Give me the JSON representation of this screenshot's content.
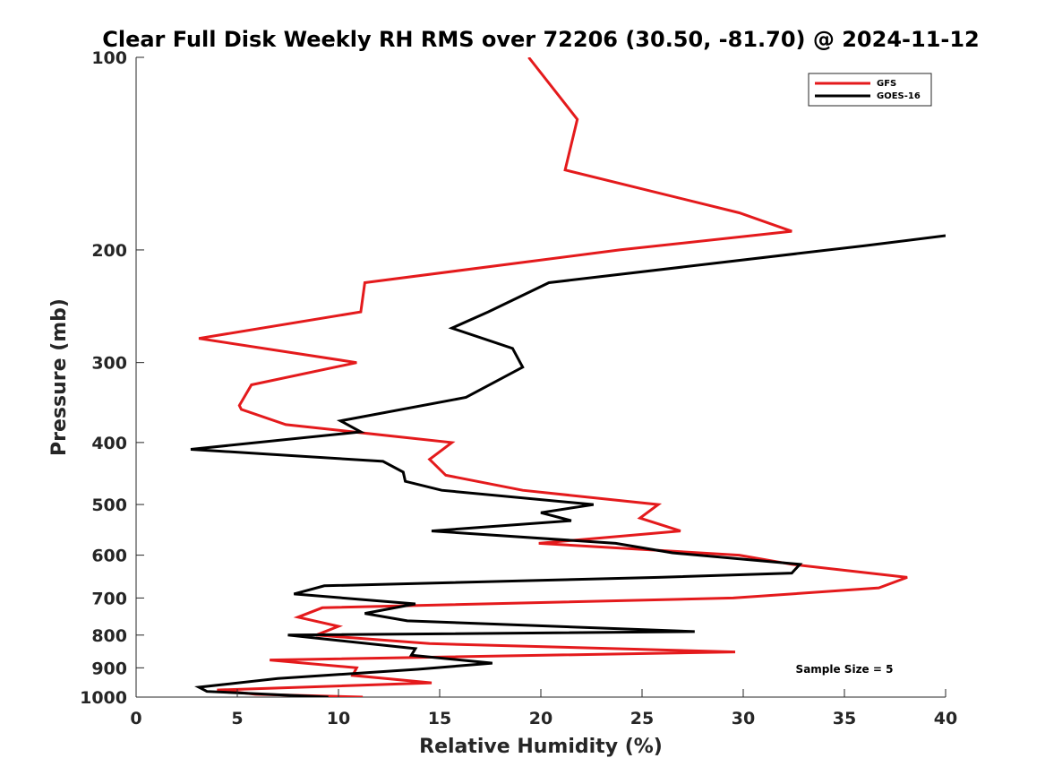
{
  "chart_data": {
    "type": "line",
    "title": "Clear Full Disk Weekly RH RMS over 72206 (30.50, -81.70) @ 2024-11-12",
    "xlabel": "Relative Humidity (%)",
    "ylabel": "Pressure (mb)",
    "xlim": [
      0,
      40
    ],
    "ylim": [
      100,
      1000
    ],
    "yscale": "log",
    "yreversed": true,
    "xticks": [
      0,
      5,
      10,
      15,
      20,
      25,
      30,
      35,
      40
    ],
    "yticks": [
      100,
      200,
      300,
      400,
      500,
      600,
      700,
      800,
      900,
      1000
    ],
    "grid": false,
    "legend_position": "top-right",
    "annotation": "Sample Size = 5",
    "series": [
      {
        "name": "GFS",
        "color": "#e41a1c",
        "points": [
          [
            19.4,
            100
          ],
          [
            21.8,
            125
          ],
          [
            21.2,
            150
          ],
          [
            29.8,
            175
          ],
          [
            32.4,
            187
          ],
          [
            23.9,
            200
          ],
          [
            11.3,
            225
          ],
          [
            11.1,
            250
          ],
          [
            3.1,
            275
          ],
          [
            10.9,
            300
          ],
          [
            10.9,
            300
          ],
          [
            5.7,
            325
          ],
          [
            5.1,
            350
          ],
          [
            5.2,
            355
          ],
          [
            7.4,
            375
          ],
          [
            15.6,
            400
          ],
          [
            14.5,
            425
          ],
          [
            15.3,
            450
          ],
          [
            19.1,
            475
          ],
          [
            25.8,
            500
          ],
          [
            24.9,
            525
          ],
          [
            26.9,
            550
          ],
          [
            19.9,
            575
          ],
          [
            29.8,
            600
          ],
          [
            32.4,
            620
          ],
          [
            38.1,
            650
          ],
          [
            36.7,
            675
          ],
          [
            29.5,
            700
          ],
          [
            9.2,
            725
          ],
          [
            8.0,
            750
          ],
          [
            10.0,
            775
          ],
          [
            8.9,
            800
          ],
          [
            14.5,
            825
          ],
          [
            29.6,
            850
          ],
          [
            6.6,
            875
          ],
          [
            10.9,
            900
          ],
          [
            10.7,
            925
          ],
          [
            14.6,
            950
          ],
          [
            4.0,
            975
          ],
          [
            5.9,
            990
          ],
          [
            11.2,
            1000
          ]
        ]
      },
      {
        "name": "GOES-16",
        "color": "#000000",
        "points": [
          [
            40.0,
            190
          ],
          [
            36.0,
            197
          ],
          [
            20.4,
            225
          ],
          [
            17.4,
            250
          ],
          [
            15.6,
            265
          ],
          [
            18.6,
            285
          ],
          [
            19.1,
            305
          ],
          [
            16.3,
            340
          ],
          [
            10.1,
            370
          ],
          [
            11.1,
            385
          ],
          [
            2.7,
            410
          ],
          [
            12.2,
            428
          ],
          [
            13.2,
            445
          ],
          [
            13.3,
            460
          ],
          [
            15.1,
            475
          ],
          [
            22.6,
            500
          ],
          [
            20.0,
            515
          ],
          [
            21.5,
            530
          ],
          [
            14.6,
            550
          ],
          [
            23.7,
            575
          ],
          [
            26.5,
            595
          ],
          [
            32.8,
            620
          ],
          [
            32.4,
            640
          ],
          [
            25.8,
            650
          ],
          [
            9.3,
            670
          ],
          [
            7.8,
            690
          ],
          [
            13.8,
            715
          ],
          [
            11.3,
            740
          ],
          [
            13.4,
            760
          ],
          [
            27.6,
            790
          ],
          [
            7.5,
            800
          ],
          [
            13.8,
            840
          ],
          [
            13.6,
            860
          ],
          [
            17.6,
            885
          ],
          [
            13.9,
            905
          ],
          [
            7.0,
            935
          ],
          [
            3.1,
            965
          ],
          [
            3.5,
            980
          ],
          [
            9.5,
            1000
          ]
        ]
      }
    ]
  }
}
